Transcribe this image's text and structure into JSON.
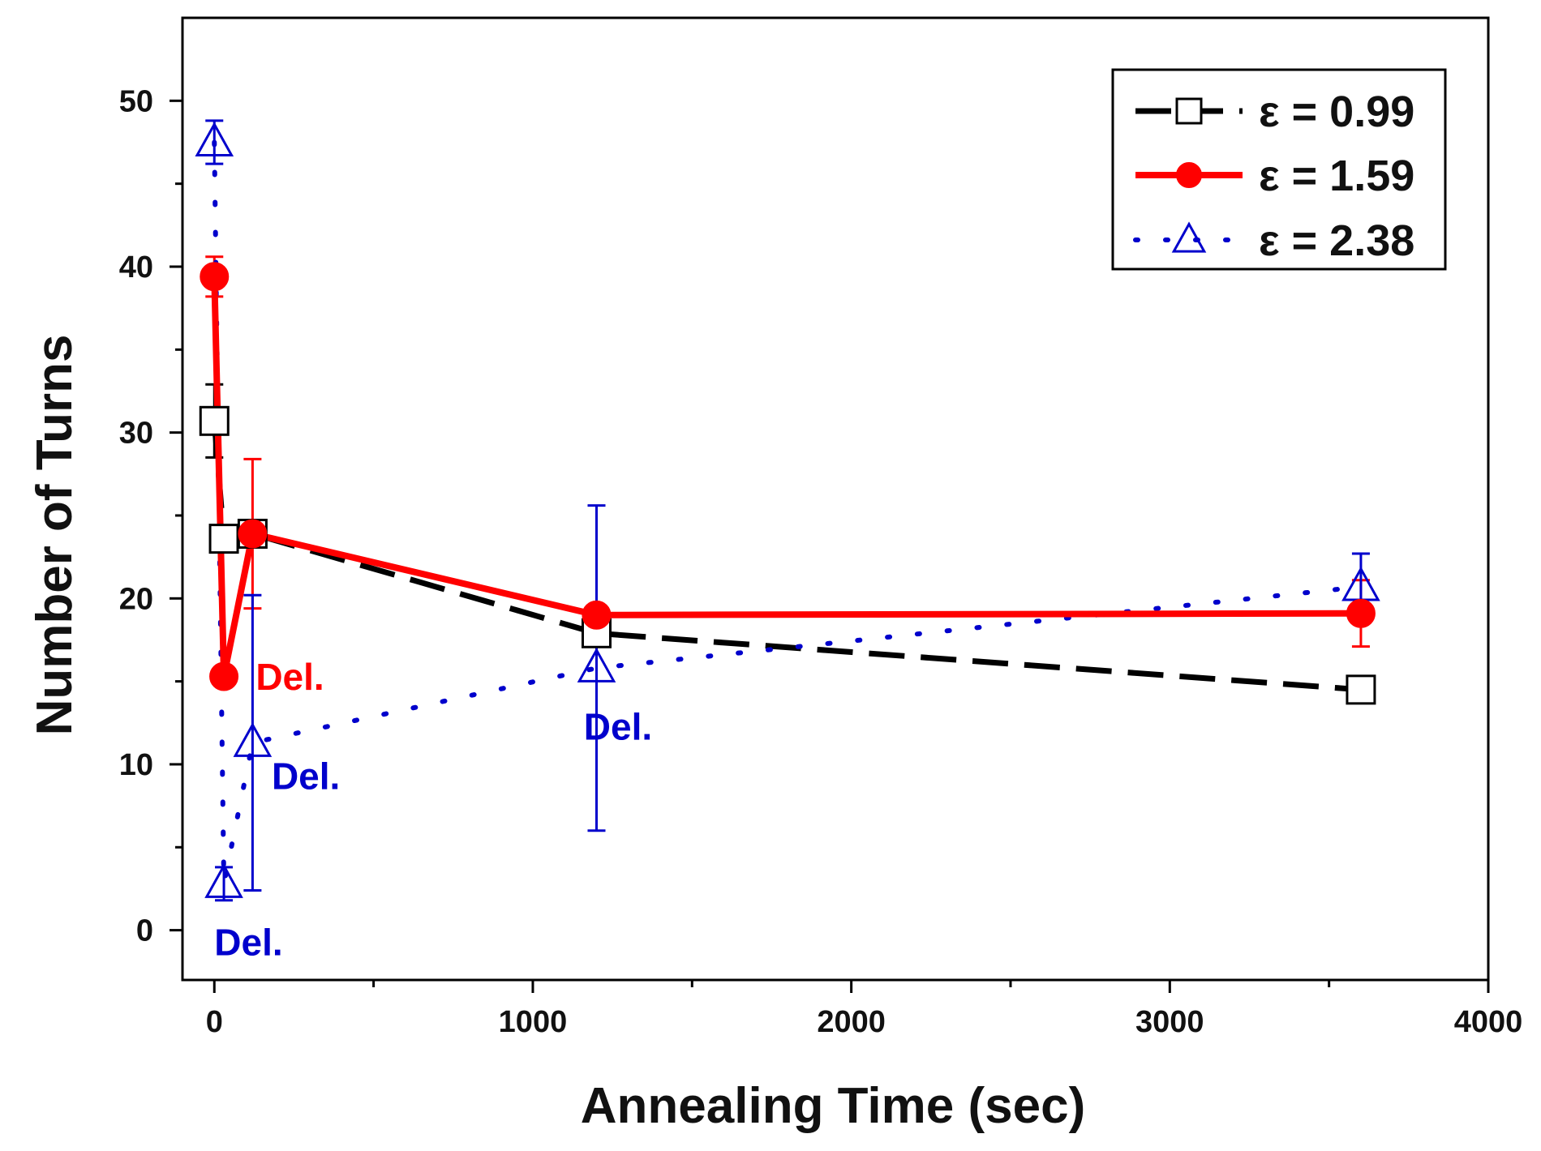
{
  "chart_data": {
    "type": "line",
    "title": "",
    "xlabel": "Annealing Time (sec)",
    "ylabel": "Number of Turns",
    "xlim": [
      -100,
      4000
    ],
    "ylim": [
      -3,
      55
    ],
    "x_ticks": [
      0,
      1000,
      2000,
      3000,
      4000
    ],
    "x_tick_labels": [
      "0",
      "1000",
      "2000",
      "3000",
      "4000"
    ],
    "y_ticks": [
      0,
      10,
      20,
      30,
      40,
      50
    ],
    "y_tick_labels": [
      "0",
      "10",
      "20",
      "30",
      "40",
      "50"
    ],
    "grid": false,
    "legend_position": "top-right",
    "series": [
      {
        "name": "ε = 0.99",
        "color": "#000000",
        "line_style": "dashed",
        "marker": "open-square",
        "x": [
          0,
          30,
          120,
          1200,
          3600
        ],
        "y": [
          30.7,
          23.6,
          23.9,
          17.9,
          14.5
        ],
        "err": [
          2.2,
          0,
          0,
          0,
          0
        ]
      },
      {
        "name": "ε = 1.59",
        "color": "#ff0000",
        "line_style": "solid",
        "marker": "filled-circle",
        "x": [
          0,
          30,
          120,
          1200,
          3600
        ],
        "y": [
          39.4,
          15.3,
          23.9,
          19.0,
          19.1
        ],
        "err": [
          1.2,
          0,
          4.5,
          0,
          2.0
        ]
      },
      {
        "name": "ε = 2.38",
        "color": "#0000cc",
        "line_style": "dotted",
        "marker": "open-triangle",
        "x": [
          0,
          30,
          120,
          1200,
          3600
        ],
        "y": [
          47.5,
          2.8,
          11.3,
          15.8,
          20.7
        ],
        "err": [
          1.3,
          1.0,
          8.9,
          9.8,
          2.0
        ]
      }
    ],
    "annotations": [
      {
        "text": "Del.",
        "x": 130,
        "y": 14.5,
        "color": "#ff0000"
      },
      {
        "text": "Del.",
        "x": 180,
        "y": 8.5,
        "color": "#0000cc"
      },
      {
        "text": "Del.",
        "x": 1160,
        "y": 11.5,
        "color": "#0000cc"
      },
      {
        "text": "Del.",
        "x": 0,
        "y": -1.5,
        "color": "#0000cc"
      }
    ]
  }
}
